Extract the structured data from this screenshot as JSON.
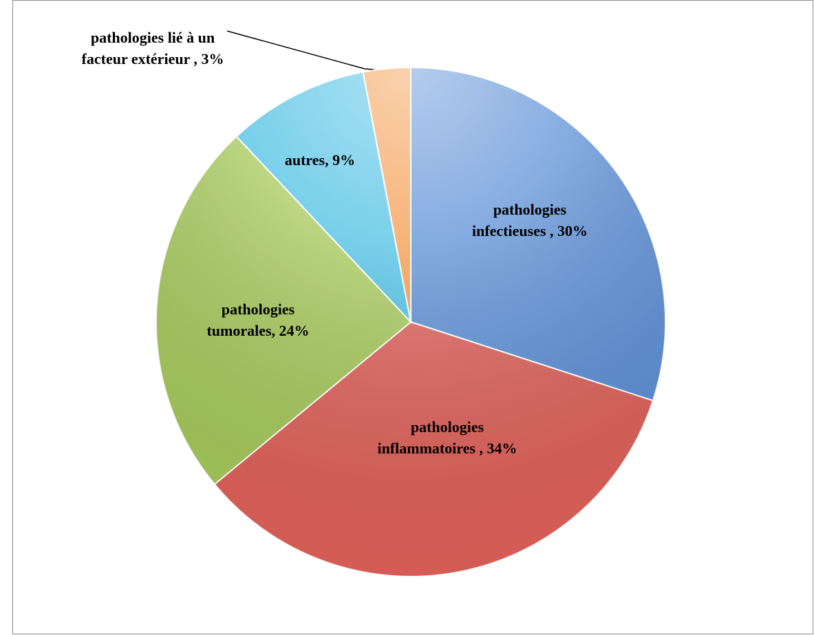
{
  "chart_data": {
    "type": "pie",
    "categories": [
      "pathologies infectieuses ,",
      "pathologies inflammatoires ,",
      "pathologies tumorales,",
      "autres,",
      "pathologies lié à un facteur extérieur ,"
    ],
    "values": [
      30,
      34,
      24,
      9,
      3
    ],
    "value_labels": [
      "30%",
      "34%",
      "24%",
      "9%",
      "3%"
    ],
    "colors": [
      "#5b8fd6",
      "#e0615a",
      "#a6c95a",
      "#4cc0e4",
      "#f49a4a"
    ]
  }
}
